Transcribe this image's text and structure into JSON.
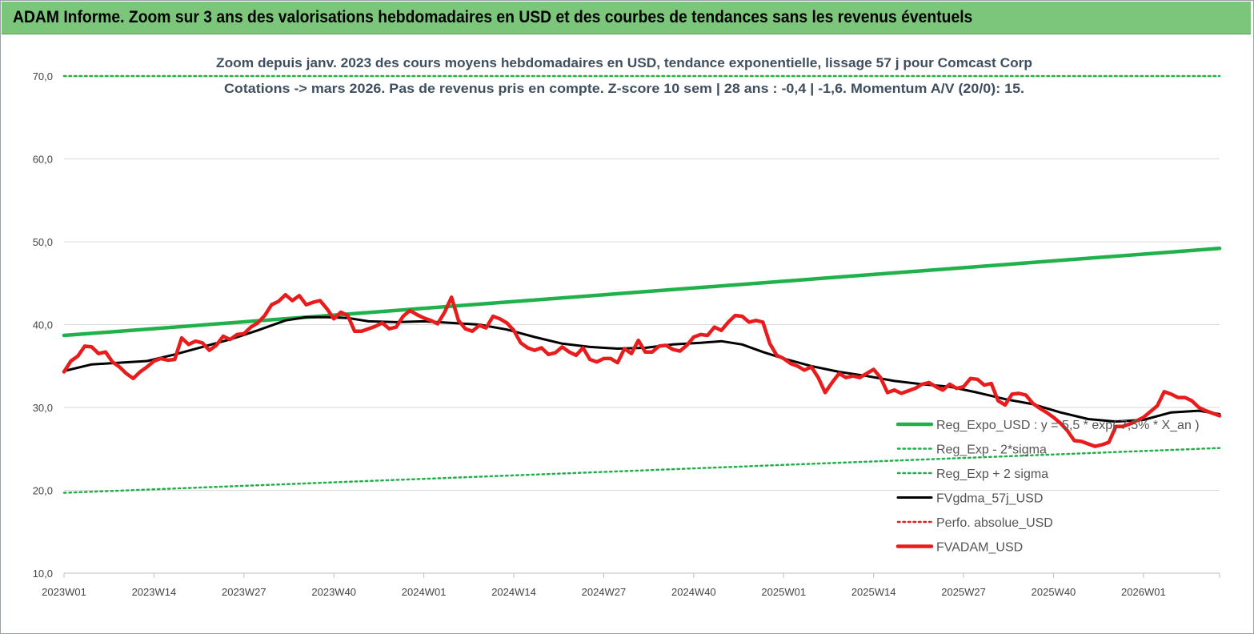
{
  "header": {
    "title": "ADAM Informe. Zoom sur 3 ans des valorisations hebdomadaires en USD et des courbes de tendances sans les revenus éventuels"
  },
  "chart_data": {
    "type": "line",
    "title_lines": [
      "Zoom depuis janv. 2023 des cours moyens hebdomadaires en USD, tendance exponentielle, lissage 57 j pour Comcast Corp",
      "Cotations -> mars 2026. Pas de revenus pris en compte. Z-score 10 sem | 28 ans : -0,4 | -1,6. Momentum A/V (20/0): 15."
    ],
    "ylim": [
      10,
      70
    ],
    "y_ticks": [
      "10,0",
      "20,0",
      "30,0",
      "40,0",
      "50,0",
      "60,0",
      "70,0"
    ],
    "y_tick_values": [
      10,
      20,
      30,
      40,
      50,
      60,
      70
    ],
    "x_ticks": [
      "2023W01",
      "2023W14",
      "2023W27",
      "2023W40",
      "2024W01",
      "2024W14",
      "2024W27",
      "2024W40",
      "2025W01",
      "2025W14",
      "2025W27",
      "2025W40",
      "2026W01"
    ],
    "x_tick_weeks": [
      0,
      13,
      26,
      39,
      52,
      65,
      78,
      91,
      104,
      117,
      130,
      143,
      156
    ],
    "xlim_weeks": [
      0,
      167
    ],
    "grid": "horizontal",
    "legend_position": "bottom-right",
    "series": [
      {
        "name": "Reg_Expo_USD : y = 5,5 * exp( 7,5% * X_an )",
        "style": "solid-thick",
        "color": "#21b14b",
        "points": [
          [
            0,
            38.7
          ],
          [
            167,
            49.2
          ]
        ]
      },
      {
        "name": "Reg_Exp - 2*sigma",
        "style": "dotted",
        "color": "#21b14b",
        "points": [
          [
            0,
            19.7
          ],
          [
            167,
            25.1
          ]
        ]
      },
      {
        "name": "Reg_Exp + 2 sigma",
        "style": "dotted",
        "color": "#21b14b",
        "points": [
          [
            0,
            70.0
          ],
          [
            167,
            70.0
          ]
        ]
      },
      {
        "name": "FVgdma_57j_USD",
        "style": "solid",
        "color": "#000000",
        "points": [
          [
            0,
            34.4
          ],
          [
            4,
            35.2
          ],
          [
            8,
            35.4
          ],
          [
            12,
            35.6
          ],
          [
            16,
            36.4
          ],
          [
            20,
            37.3
          ],
          [
            24,
            38.2
          ],
          [
            28,
            39.3
          ],
          [
            32,
            40.5
          ],
          [
            35,
            40.9
          ],
          [
            38,
            40.9
          ],
          [
            41,
            40.8
          ],
          [
            44,
            40.4
          ],
          [
            48,
            40.3
          ],
          [
            52,
            40.4
          ],
          [
            56,
            40.2
          ],
          [
            60,
            40.0
          ],
          [
            64,
            39.4
          ],
          [
            68,
            38.5
          ],
          [
            72,
            37.7
          ],
          [
            76,
            37.3
          ],
          [
            80,
            37.1
          ],
          [
            84,
            37.2
          ],
          [
            88,
            37.6
          ],
          [
            92,
            37.8
          ],
          [
            95,
            38.0
          ],
          [
            98,
            37.6
          ],
          [
            101,
            36.7
          ],
          [
            104,
            35.9
          ],
          [
            108,
            35.0
          ],
          [
            112,
            34.3
          ],
          [
            116,
            33.8
          ],
          [
            120,
            33.2
          ],
          [
            124,
            32.8
          ],
          [
            128,
            32.5
          ],
          [
            132,
            31.8
          ],
          [
            136,
            31.0
          ],
          [
            140,
            30.4
          ],
          [
            144,
            29.4
          ],
          [
            148,
            28.6
          ],
          [
            152,
            28.3
          ],
          [
            156,
            28.5
          ],
          [
            160,
            29.4
          ],
          [
            164,
            29.6
          ],
          [
            167,
            29.2
          ]
        ]
      },
      {
        "name": "Perfo. absolue_USD",
        "style": "dotted",
        "color": "#e02020",
        "points": []
      },
      {
        "name": "FVADAM_USD",
        "style": "solid-thick",
        "color": "#e81c1c",
        "points": [
          [
            0,
            34.3
          ],
          [
            1,
            35.6
          ],
          [
            2,
            36.2
          ],
          [
            3,
            37.4
          ],
          [
            4,
            37.3
          ],
          [
            5,
            36.5
          ],
          [
            6,
            36.7
          ],
          [
            7,
            35.5
          ],
          [
            8,
            34.9
          ],
          [
            9,
            34.1
          ],
          [
            10,
            33.5
          ],
          [
            11,
            34.3
          ],
          [
            12,
            34.9
          ],
          [
            13,
            35.6
          ],
          [
            14,
            35.9
          ],
          [
            15,
            35.7
          ],
          [
            16,
            35.8
          ],
          [
            17,
            38.4
          ],
          [
            18,
            37.6
          ],
          [
            19,
            38.0
          ],
          [
            20,
            37.8
          ],
          [
            21,
            36.9
          ],
          [
            22,
            37.5
          ],
          [
            23,
            38.6
          ],
          [
            24,
            38.2
          ],
          [
            25,
            38.8
          ],
          [
            26,
            38.9
          ],
          [
            27,
            39.7
          ],
          [
            28,
            40.2
          ],
          [
            29,
            41.1
          ],
          [
            30,
            42.4
          ],
          [
            31,
            42.8
          ],
          [
            32,
            43.6
          ],
          [
            33,
            42.9
          ],
          [
            34,
            43.5
          ],
          [
            35,
            42.4
          ],
          [
            36,
            42.7
          ],
          [
            37,
            42.9
          ],
          [
            38,
            41.9
          ],
          [
            39,
            40.7
          ],
          [
            40,
            41.5
          ],
          [
            41,
            41.1
          ],
          [
            42,
            39.2
          ],
          [
            43,
            39.2
          ],
          [
            44,
            39.5
          ],
          [
            45,
            39.8
          ],
          [
            46,
            40.2
          ],
          [
            47,
            39.5
          ],
          [
            48,
            39.7
          ],
          [
            49,
            41.0
          ],
          [
            50,
            41.7
          ],
          [
            51,
            41.2
          ],
          [
            52,
            40.8
          ],
          [
            53,
            40.5
          ],
          [
            54,
            40.1
          ],
          [
            55,
            41.5
          ],
          [
            56,
            43.3
          ],
          [
            57,
            40.5
          ],
          [
            58,
            39.5
          ],
          [
            59,
            39.2
          ],
          [
            60,
            39.9
          ],
          [
            61,
            39.6
          ],
          [
            62,
            41.0
          ],
          [
            63,
            40.7
          ],
          [
            64,
            40.2
          ],
          [
            65,
            39.3
          ],
          [
            66,
            37.8
          ],
          [
            67,
            37.2
          ],
          [
            68,
            36.9
          ],
          [
            69,
            37.2
          ],
          [
            70,
            36.4
          ],
          [
            71,
            36.6
          ],
          [
            72,
            37.3
          ],
          [
            73,
            36.7
          ],
          [
            74,
            36.3
          ],
          [
            75,
            37.2
          ],
          [
            76,
            35.8
          ],
          [
            77,
            35.5
          ],
          [
            78,
            35.9
          ],
          [
            79,
            35.9
          ],
          [
            80,
            35.4
          ],
          [
            81,
            37.1
          ],
          [
            82,
            36.5
          ],
          [
            83,
            38.1
          ],
          [
            84,
            36.7
          ],
          [
            85,
            36.7
          ],
          [
            86,
            37.4
          ],
          [
            87,
            37.5
          ],
          [
            88,
            37.0
          ],
          [
            89,
            36.8
          ],
          [
            90,
            37.5
          ],
          [
            91,
            38.5
          ],
          [
            92,
            38.8
          ],
          [
            93,
            38.7
          ],
          [
            94,
            39.7
          ],
          [
            95,
            39.3
          ],
          [
            96,
            40.3
          ],
          [
            97,
            41.1
          ],
          [
            98,
            41.0
          ],
          [
            99,
            40.3
          ],
          [
            100,
            40.5
          ],
          [
            101,
            40.3
          ],
          [
            102,
            37.7
          ],
          [
            103,
            36.3
          ],
          [
            104,
            35.9
          ],
          [
            105,
            35.3
          ],
          [
            106,
            35.0
          ],
          [
            107,
            34.5
          ],
          [
            108,
            34.9
          ],
          [
            109,
            33.6
          ],
          [
            110,
            31.8
          ],
          [
            111,
            33.0
          ],
          [
            112,
            34.1
          ],
          [
            113,
            33.6
          ],
          [
            114,
            33.8
          ],
          [
            115,
            33.6
          ],
          [
            116,
            34.1
          ],
          [
            117,
            34.6
          ],
          [
            118,
            33.6
          ],
          [
            119,
            31.8
          ],
          [
            120,
            32.1
          ],
          [
            121,
            31.7
          ],
          [
            122,
            32.0
          ],
          [
            123,
            32.3
          ],
          [
            124,
            32.8
          ],
          [
            125,
            33.0
          ],
          [
            126,
            32.5
          ],
          [
            127,
            32.1
          ],
          [
            128,
            32.8
          ],
          [
            129,
            32.3
          ],
          [
            130,
            32.5
          ],
          [
            131,
            33.5
          ],
          [
            132,
            33.4
          ],
          [
            133,
            32.7
          ],
          [
            134,
            32.9
          ],
          [
            135,
            30.8
          ],
          [
            136,
            30.3
          ],
          [
            137,
            31.6
          ],
          [
            138,
            31.7
          ],
          [
            139,
            31.5
          ],
          [
            140,
            30.5
          ],
          [
            141,
            29.9
          ],
          [
            142,
            29.4
          ],
          [
            143,
            28.8
          ],
          [
            144,
            28.1
          ],
          [
            145,
            27.2
          ],
          [
            146,
            26.0
          ],
          [
            147,
            25.9
          ],
          [
            148,
            25.6
          ],
          [
            149,
            25.3
          ],
          [
            150,
            25.5
          ],
          [
            151,
            25.8
          ],
          [
            152,
            27.7
          ],
          [
            153,
            27.7
          ],
          [
            154,
            28.0
          ],
          [
            155,
            28.4
          ],
          [
            156,
            28.8
          ],
          [
            157,
            29.5
          ],
          [
            158,
            30.2
          ],
          [
            159,
            31.9
          ],
          [
            160,
            31.6
          ],
          [
            161,
            31.2
          ],
          [
            162,
            31.2
          ],
          [
            163,
            30.8
          ],
          [
            164,
            30.0
          ],
          [
            165,
            29.6
          ],
          [
            166,
            29.3
          ],
          [
            167,
            29.0
          ]
        ]
      }
    ]
  }
}
